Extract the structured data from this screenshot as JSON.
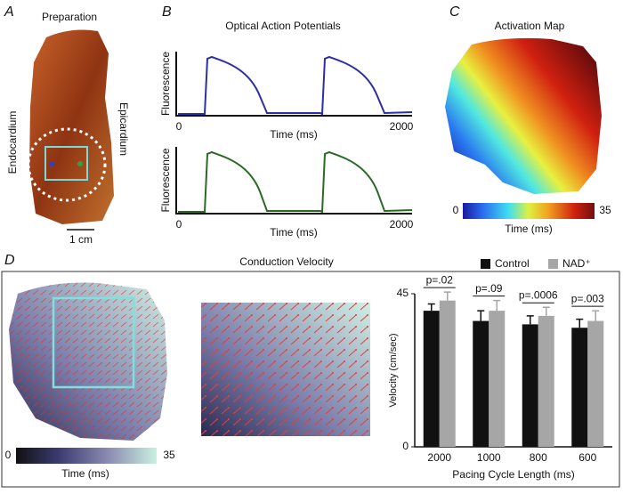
{
  "panels": {
    "A": {
      "letter": "A",
      "title": "Preparation",
      "left_label": "Endocardium",
      "right_label": "Epicardium",
      "scale": "1 cm"
    },
    "B": {
      "letter": "B",
      "title": "Optical Action Potentials",
      "traces": [
        {
          "ylabel": "Fluorescence",
          "xlabel": "Time (ms)",
          "xlim": [
            0,
            2000
          ],
          "xticks": [
            0,
            2000
          ],
          "color": "#2a2fa6"
        },
        {
          "ylabel": "Fluorescence",
          "xlabel": "Time (ms)",
          "xlim": [
            0,
            2000
          ],
          "xticks": [
            0,
            2000
          ],
          "color": "#2a6a24"
        }
      ]
    },
    "C": {
      "letter": "C",
      "title": "Activation Map",
      "colorbar": {
        "ticks": [
          0,
          35
        ],
        "label": "Time (ms)"
      }
    },
    "D": {
      "letter": "D",
      "title": "Conduction Velocity",
      "colorbar": {
        "ticks": [
          0,
          35
        ],
        "label": "Time (ms)"
      }
    }
  },
  "chart_data": {
    "type": "bar",
    "ylabel": "Velocity (cm/sec)",
    "xlabel": "Pacing Cycle Length (ms)",
    "categories": [
      "2000",
      "1000",
      "800",
      "600"
    ],
    "series": [
      {
        "name": "Control",
        "color": "#111111",
        "values": [
          40,
          37,
          36,
          35
        ],
        "errors": [
          2,
          3,
          2.5,
          2.5
        ]
      },
      {
        "name": "NAD⁺",
        "color": "#a6a6a6",
        "values": [
          43,
          40,
          38.5,
          37
        ],
        "errors": [
          2.5,
          3,
          2.5,
          3
        ]
      }
    ],
    "annotations": [
      "p=.02",
      "p=.09",
      "p=.0006",
      "p=.003"
    ],
    "ylim": [
      0,
      45
    ],
    "yticks": [
      0,
      45
    ]
  }
}
